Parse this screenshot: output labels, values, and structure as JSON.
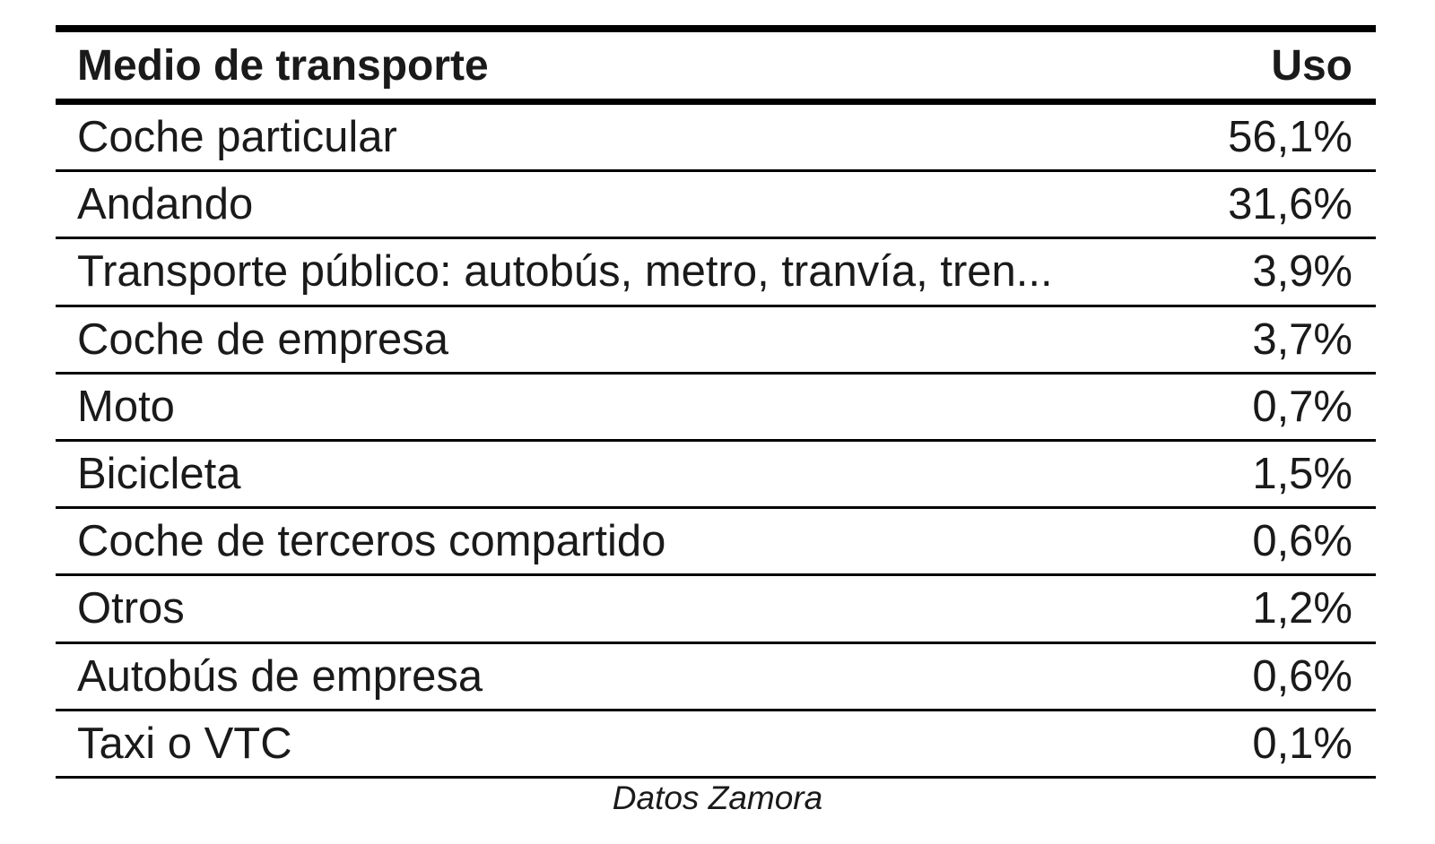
{
  "chart_data": {
    "type": "table",
    "columns": [
      "Medio de transporte",
      "Uso"
    ],
    "rows": [
      {
        "label": "Coche particular",
        "value": "56,1%"
      },
      {
        "label": "Andando",
        "value": "31,6%"
      },
      {
        "label": "Transporte público: autobús, metro, tranvía, tren...",
        "value": "3,9%"
      },
      {
        "label": "Coche de empresa",
        "value": "3,7%"
      },
      {
        "label": "Moto",
        "value": "0,7%"
      },
      {
        "label": "Bicicleta",
        "value": "1,5%"
      },
      {
        "label": "Coche de terceros compartido",
        "value": "0,6%"
      },
      {
        "label": "Otros",
        "value": "1,2%"
      },
      {
        "label": "Autobús de empresa",
        "value": "0,6%"
      },
      {
        "label": "Taxi o VTC",
        "value": "0,1%"
      }
    ],
    "source": "Datos Zamora"
  }
}
